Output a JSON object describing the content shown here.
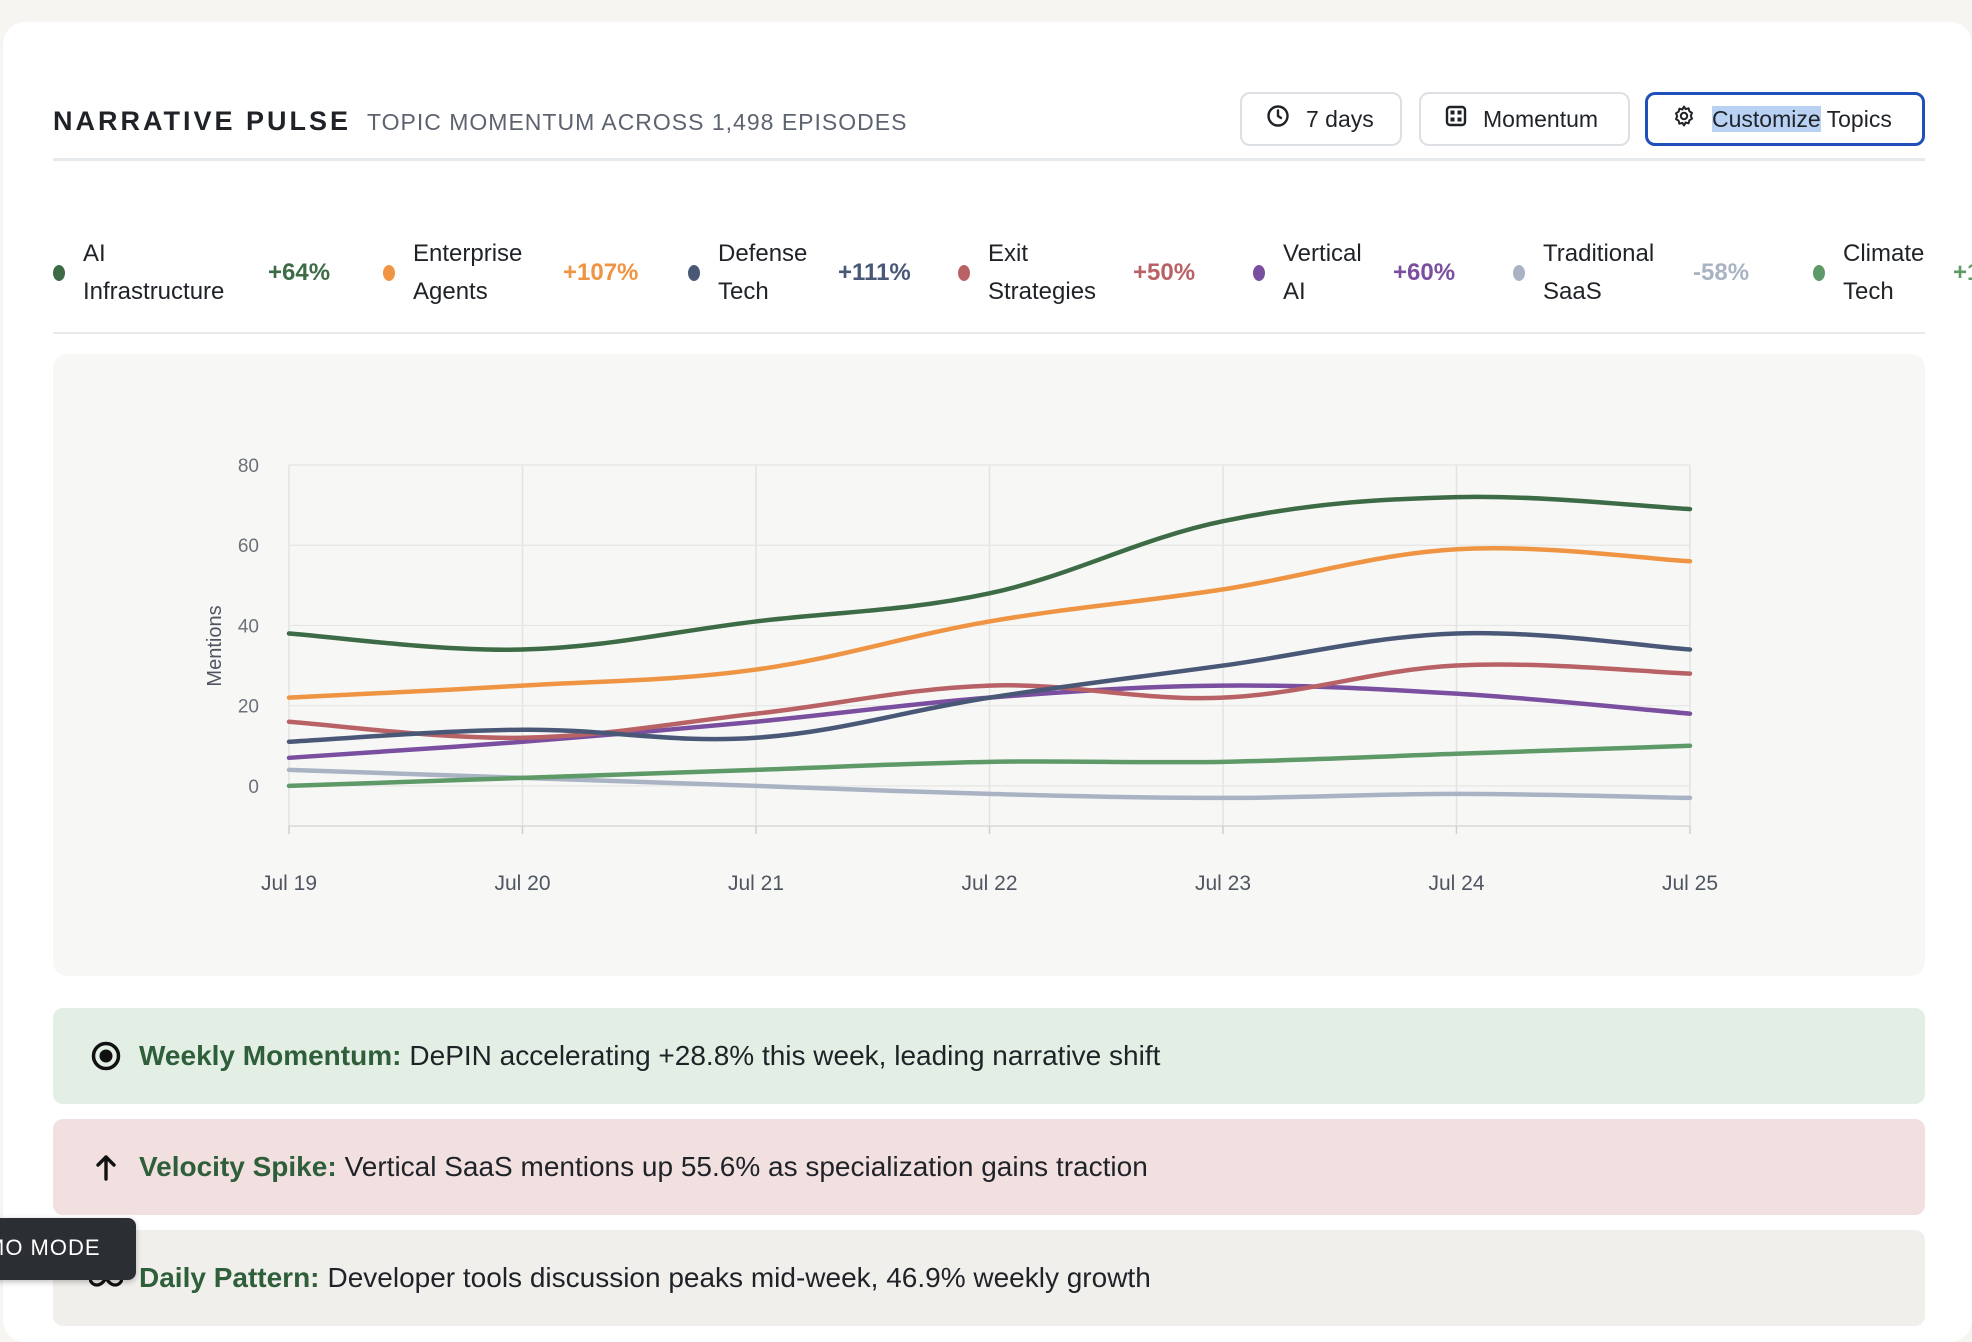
{
  "header": {
    "title": "NARRATIVE PULSE",
    "subtitle": "TOPIC MOMENTUM ACROSS 1,498 EPISODES",
    "buttons": {
      "range": "7 days",
      "view": "Momentum",
      "customize_selected": "Customize",
      "customize_rest": " Topics"
    }
  },
  "legend": [
    {
      "line1": "AI",
      "line2": "Infrastructure",
      "change": "+64%",
      "color": "#3d6b45"
    },
    {
      "line1": "Enterprise",
      "line2": "Agents",
      "change": "+107%",
      "color": "#ef9443"
    },
    {
      "line1": "Defense",
      "line2": "Tech",
      "change": "+111%",
      "color": "#4a5878"
    },
    {
      "line1": "Exit",
      "line2": "Strategies",
      "change": "+50%",
      "color": "#b96266"
    },
    {
      "line1": "Vertical",
      "line2": "AI",
      "change": "+60%",
      "color": "#7a4fa0"
    },
    {
      "line1": "Traditional",
      "line2": "SaaS",
      "change": "-58%",
      "color": "#aab3c4"
    },
    {
      "line1": "Climate",
      "line2": "Tech",
      "change": "+1",
      "color": "#5e9a67"
    }
  ],
  "chart_data": {
    "type": "line",
    "x": [
      "Jul 19",
      "Jul 20",
      "Jul 21",
      "Jul 22",
      "Jul 23",
      "Jul 24",
      "Jul 25"
    ],
    "ylabel": "Mentions",
    "ylim": [
      -10,
      80
    ],
    "yticks": [
      0,
      20,
      40,
      60,
      80
    ],
    "grid": true,
    "series": [
      {
        "name": "AI Infrastructure",
        "color": "#3d6b45",
        "values": [
          38,
          34,
          41,
          48,
          66,
          72,
          69
        ]
      },
      {
        "name": "Enterprise Agents",
        "color": "#ef9443",
        "values": [
          22,
          25,
          29,
          41,
          49,
          59,
          56
        ]
      },
      {
        "name": "Defense Tech",
        "color": "#4a5878",
        "values": [
          11,
          14,
          12,
          22,
          30,
          38,
          34
        ]
      },
      {
        "name": "Exit Strategies",
        "color": "#b96266",
        "values": [
          16,
          12,
          18,
          25,
          22,
          30,
          28
        ]
      },
      {
        "name": "Vertical AI",
        "color": "#7a4fa0",
        "values": [
          7,
          11,
          16,
          22,
          25,
          23,
          18
        ]
      },
      {
        "name": "Traditional SaaS",
        "color": "#aab3c4",
        "values": [
          4,
          2,
          0,
          -2,
          -3,
          -2,
          -3
        ]
      },
      {
        "name": "Climate Tech",
        "color": "#5e9a67",
        "values": [
          0,
          2,
          4,
          6,
          6,
          8,
          10
        ]
      }
    ]
  },
  "insights": [
    {
      "icon": "target-icon",
      "label": "Weekly Momentum:",
      "text": "DePIN accelerating +28.8% this week, leading narrative shift",
      "bg": "#e3efe4"
    },
    {
      "icon": "arrow-up-icon",
      "label": "Velocity Spike:",
      "text": "Vertical SaaS mentions up 55.6% as specialization gains traction",
      "bg": "#f2e0e1"
    },
    {
      "icon": "infinity-icon",
      "label": "Daily Pattern:",
      "text": "Developer tools discussion peaks mid-week, 46.9% weekly growth",
      "bg": "#f1efec"
    }
  ],
  "demo_badge": "MO MODE"
}
